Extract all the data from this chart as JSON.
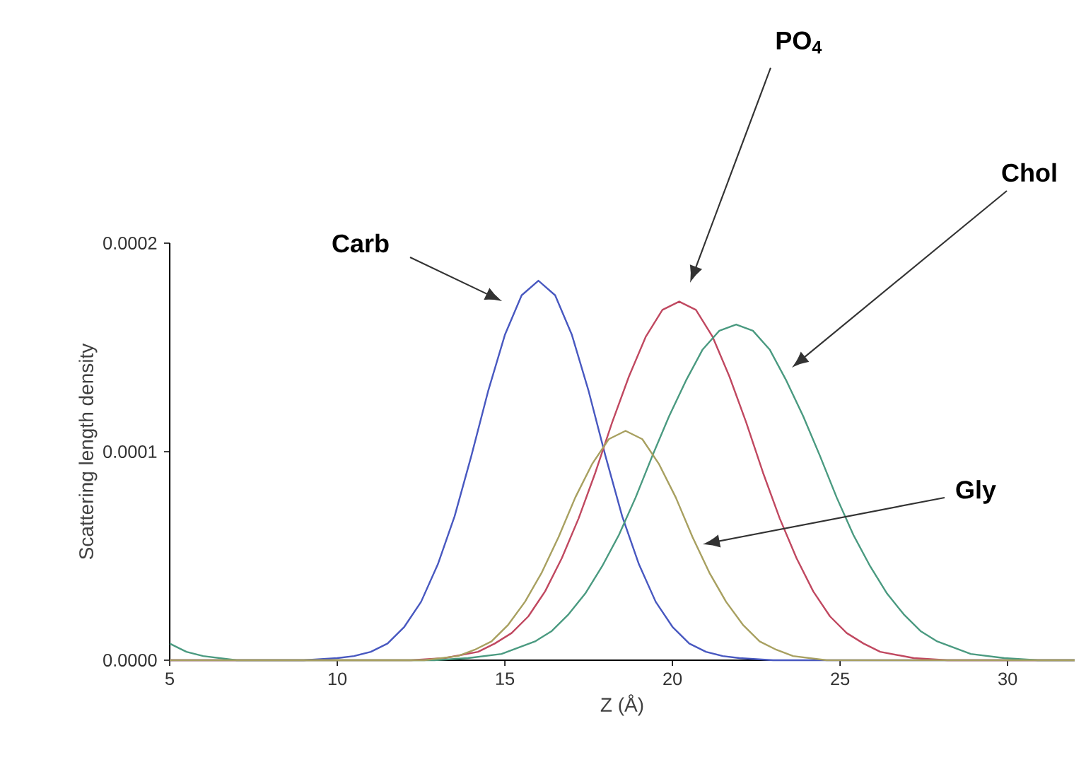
{
  "chart_data": {
    "type": "line",
    "xlabel": "Z (Å)",
    "ylabel": "Scattering length density",
    "xlim": [
      5,
      32
    ],
    "ylim": [
      0,
      0.0002
    ],
    "xticks": [
      5,
      10,
      15,
      20,
      25,
      30
    ],
    "yticks": [
      {
        "value": 0,
        "label": "0.0000"
      },
      {
        "value": 0.0001,
        "label": "0.0001"
      },
      {
        "value": 0.0002,
        "label": "0.0002"
      }
    ],
    "grid": false,
    "marker": "none",
    "line_style": "solid",
    "series": [
      {
        "color": "#4858c0",
        "x": [
          5,
          9,
          10,
          10.5,
          11,
          11.5,
          12,
          12.5,
          13,
          13.5,
          14,
          14.5,
          15,
          15.5,
          16,
          16.5,
          17,
          17.5,
          18,
          18.5,
          19,
          19.5,
          20,
          20.5,
          21,
          21.5,
          22,
          23,
          32
        ],
        "values": [
          0,
          0,
          1e-06,
          2e-06,
          4e-06,
          8e-06,
          1.6e-05,
          2.8e-05,
          4.6e-05,
          6.9e-05,
          9.8e-05,
          0.000129,
          0.000156,
          0.000175,
          0.000182,
          0.000175,
          0.000156,
          0.000129,
          9.8e-05,
          6.9e-05,
          4.6e-05,
          2.8e-05,
          1.6e-05,
          8e-06,
          4e-06,
          2e-06,
          1e-06,
          0,
          0
        ]
      },
      {
        "color": "#c04860",
        "x": [
          5,
          12.2,
          13.2,
          14.2,
          14.7,
          15.2,
          15.7,
          16.2,
          16.7,
          17.2,
          17.7,
          18.2,
          18.7,
          19.2,
          19.7,
          20.2,
          20.7,
          21.2,
          21.7,
          22.2,
          22.7,
          23.2,
          23.7,
          24.2,
          24.7,
          25.2,
          25.7,
          26.2,
          27.2,
          28.2,
          32
        ],
        "values": [
          0,
          0,
          1e-06,
          4e-06,
          8e-06,
          1.3e-05,
          2.1e-05,
          3.3e-05,
          4.9e-05,
          6.8e-05,
          9e-05,
          0.000114,
          0.000136,
          0.000155,
          0.000168,
          0.000172,
          0.000168,
          0.000155,
          0.000136,
          0.000114,
          9e-05,
          6.8e-05,
          4.9e-05,
          3.3e-05,
          2.1e-05,
          1.3e-05,
          8e-06,
          4e-06,
          1e-06,
          0,
          0
        ]
      },
      {
        "color": "#4a9a80",
        "x": [
          5,
          5.5,
          6,
          7,
          12.9,
          13.9,
          14.9,
          15.9,
          16.4,
          16.9,
          17.4,
          17.9,
          18.4,
          18.9,
          19.4,
          19.9,
          20.4,
          20.9,
          21.4,
          21.9,
          22.4,
          22.9,
          23.4,
          23.9,
          24.4,
          24.9,
          25.4,
          25.9,
          26.4,
          26.9,
          27.4,
          27.9,
          28.9,
          29.9,
          30.9,
          32
        ],
        "values": [
          8e-06,
          4e-06,
          2e-06,
          0,
          0,
          1e-06,
          3e-06,
          9e-06,
          1.4e-05,
          2.2e-05,
          3.2e-05,
          4.5e-05,
          6e-05,
          7.8e-05,
          9.8e-05,
          0.000117,
          0.000134,
          0.000149,
          0.000158,
          0.000161,
          0.000158,
          0.000149,
          0.000134,
          0.000117,
          9.8e-05,
          7.8e-05,
          6e-05,
          4.5e-05,
          3.2e-05,
          2.2e-05,
          1.4e-05,
          9e-06,
          3e-06,
          1e-06,
          0,
          0
        ]
      },
      {
        "color": "#a8a060",
        "x": [
          5,
          11.6,
          12.6,
          13.1,
          13.6,
          14.1,
          14.6,
          15.1,
          15.6,
          16.1,
          16.6,
          17.1,
          17.6,
          18.1,
          18.6,
          19.1,
          19.6,
          20.1,
          20.6,
          21.1,
          21.6,
          22.1,
          22.6,
          23.1,
          23.6,
          24.1,
          24.6,
          25.6,
          32
        ],
        "values": [
          0,
          0,
          0,
          1e-06,
          2e-06,
          5e-06,
          9e-06,
          1.7e-05,
          2.8e-05,
          4.2e-05,
          5.9e-05,
          7.8e-05,
          9.4e-05,
          0.000106,
          0.00011,
          0.000106,
          9.4e-05,
          7.8e-05,
          5.9e-05,
          4.2e-05,
          2.8e-05,
          1.7e-05,
          9e-06,
          5e-06,
          2e-06,
          1e-06,
          0,
          0,
          0
        ]
      }
    ],
    "annotations": [
      "Carb",
      "PO$_{4}$",
      "Chol",
      "Gly"
    ]
  }
}
